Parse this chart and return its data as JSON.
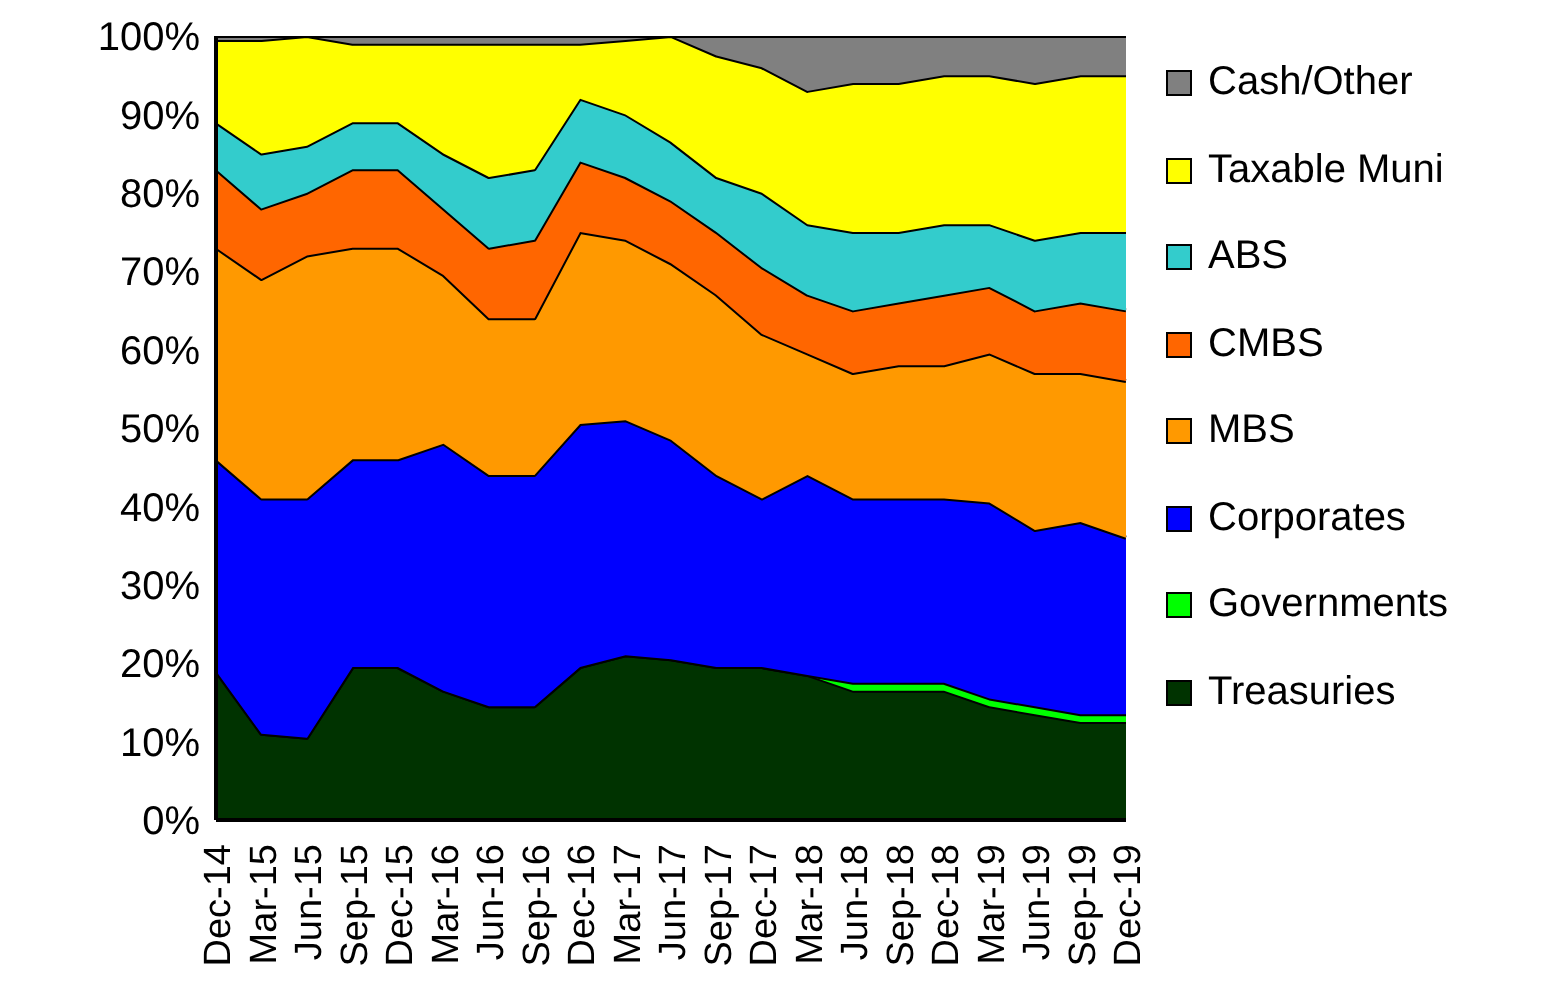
{
  "chart_data": {
    "type": "area",
    "stacked": true,
    "categories": [
      "Dec-14",
      "Mar-15",
      "Jun-15",
      "Sep-15",
      "Dec-15",
      "Mar-16",
      "Jun-16",
      "Sep-16",
      "Dec-16",
      "Mar-17",
      "Jun-17",
      "Sep-17",
      "Dec-17",
      "Mar-18",
      "Jun-18",
      "Sep-18",
      "Dec-18",
      "Mar-19",
      "Jun-19",
      "Sep-19",
      "Dec-19"
    ],
    "ylim": [
      0,
      100
    ],
    "yticks": [
      {
        "value": 0,
        "label": "0%"
      },
      {
        "value": 10,
        "label": "10%"
      },
      {
        "value": 20,
        "label": "20%"
      },
      {
        "value": 30,
        "label": "30%"
      },
      {
        "value": 40,
        "label": "40%"
      },
      {
        "value": 50,
        "label": "50%"
      },
      {
        "value": 60,
        "label": "60%"
      },
      {
        "value": 70,
        "label": "70%"
      },
      {
        "value": 80,
        "label": "80%"
      },
      {
        "value": 90,
        "label": "90%"
      },
      {
        "value": 100,
        "label": "100%"
      }
    ],
    "legend": "right",
    "grid": false,
    "series": [
      {
        "name": "Treasuries",
        "color": "#003300",
        "values": [
          19,
          11,
          10.5,
          19.5,
          19.5,
          16.5,
          14.5,
          14.5,
          19.5,
          21,
          20.5,
          19.5,
          19.5,
          18.5,
          16.5,
          16.5,
          16.5,
          14.5,
          13.5,
          12.5,
          12.5
        ]
      },
      {
        "name": "Governments",
        "color": "#00ff00",
        "values": [
          0,
          0,
          0,
          0,
          0,
          0,
          0,
          0,
          0,
          0,
          0,
          0,
          0,
          0,
          1,
          1,
          1,
          1,
          1,
          1,
          1
        ]
      },
      {
        "name": "Corporates",
        "color": "#0000ff",
        "values": [
          27,
          30,
          30.5,
          26.5,
          26.5,
          31.5,
          29.5,
          29.5,
          31,
          30,
          28,
          24.5,
          21.5,
          25.5,
          23.5,
          23.5,
          23.5,
          25,
          22.5,
          24.5,
          22.5
        ]
      },
      {
        "name": "MBS",
        "color": "#ff9900",
        "values": [
          27,
          28,
          31,
          27,
          27,
          21.5,
          20,
          20,
          24.5,
          23,
          22.5,
          23,
          21,
          15.5,
          16,
          17,
          17,
          19,
          20,
          19,
          20
        ]
      },
      {
        "name": "CMBS",
        "color": "#ff6600",
        "values": [
          10,
          9,
          8,
          10,
          10,
          8.5,
          9,
          10,
          9,
          8,
          8,
          8,
          8.5,
          7.5,
          8,
          8,
          9,
          8.5,
          8,
          9,
          9
        ]
      },
      {
        "name": "ABS",
        "color": "#33cccc",
        "values": [
          6,
          7,
          6,
          6,
          6,
          7,
          9,
          9,
          8,
          8,
          7.5,
          7,
          9.5,
          9,
          10,
          9,
          9,
          8,
          9,
          9,
          10
        ]
      },
      {
        "name": "Taxable Muni",
        "color": "#ffff00",
        "values": [
          10.5,
          14.5,
          14,
          10,
          10,
          14,
          17,
          16,
          7,
          9.5,
          13.5,
          15.5,
          16,
          17,
          19,
          19,
          19,
          19,
          20,
          20,
          20
        ]
      },
      {
        "name": "Cash/Other",
        "color": "#808080",
        "values": [
          0.5,
          0.5,
          0,
          1,
          1,
          1,
          1,
          1,
          1,
          0.5,
          0,
          2.5,
          4,
          7,
          6,
          6,
          5,
          5,
          6,
          5,
          5
        ]
      }
    ]
  }
}
